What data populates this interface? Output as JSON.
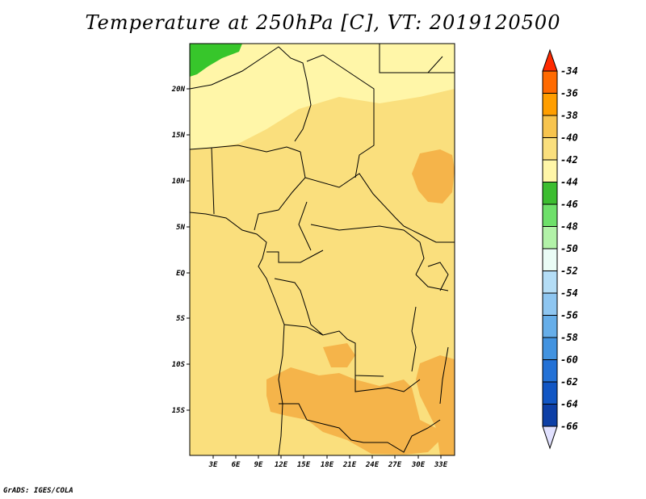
{
  "title": "Temperature at 250hPa [C], VT: 2019120500",
  "credit": "GrADS: IGES/COLA",
  "map": {
    "lat_labels": [
      "20N",
      "15N",
      "10N",
      "5N",
      "EQ",
      "5S",
      "10S",
      "15S"
    ],
    "lon_labels": [
      "3E",
      "6E",
      "9E",
      "12E",
      "15E",
      "18E",
      "21E",
      "24E",
      "27E",
      "30E",
      "33E"
    ],
    "regions": [
      {
        "name": "bright-green-patch",
        "level": "-46..-44",
        "color": "#37c62b"
      },
      {
        "name": "light-yellow-north",
        "level": "-44..-42",
        "color": "#fff6a8"
      },
      {
        "name": "main-yellow",
        "level": "-42..-40",
        "color": "#fadf7d"
      },
      {
        "name": "orange-southeast",
        "level": "-40..-38",
        "color": "#f5b44a"
      }
    ]
  },
  "colorbar": {
    "labels": [
      "-34",
      "-36",
      "-38",
      "-40",
      "-42",
      "-44",
      "-46",
      "-48",
      "-50",
      "-52",
      "-54",
      "-56",
      "-58",
      "-60",
      "-62",
      "-64",
      "-66"
    ],
    "colors": [
      "#ff2a00",
      "#ff6a00",
      "#ff9e00",
      "#f7c44e",
      "#fadf7d",
      "#fff6a8",
      "#3cbd30",
      "#6ee06a",
      "#b2f2a8",
      "#eafcf6",
      "#b4ddf6",
      "#8ec6f1",
      "#66aee9",
      "#4293e0",
      "#2371d6",
      "#1156c4",
      "#0d3fa6",
      "#0b1a78"
    ],
    "top_color": "#ff2a00",
    "bottom_color": "#e1e1ff"
  }
}
